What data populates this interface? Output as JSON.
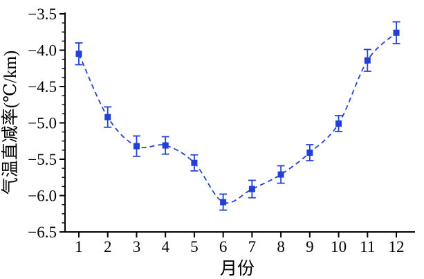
{
  "figure": {
    "background": "#ffffff",
    "accent_color": "#2340d6",
    "axis_color": "#000000"
  },
  "chart_data": {
    "type": "line",
    "title": "",
    "xlabel": "月份",
    "ylabel": "气温直减率(℃/km)",
    "x": [
      1,
      2,
      3,
      4,
      5,
      6,
      7,
      8,
      9,
      10,
      11,
      12
    ],
    "x_tick_labels": [
      "1",
      "2",
      "3",
      "4",
      "5",
      "6",
      "7",
      "8",
      "9",
      "10",
      "11",
      "12"
    ],
    "y_tick_labels": [
      "−3.5",
      "−4.0",
      "−4.5",
      "−5.0",
      "−5.5",
      "−6.0",
      "−6.5"
    ],
    "xlim": [
      0.5,
      12.6
    ],
    "ylim": [
      -6.5,
      -3.5
    ],
    "y_major_step": 0.5,
    "y_minor_step": 0.125,
    "grid": false,
    "legend": "none",
    "series": [
      {
        "name": "monthly-temperature-lapse-rate",
        "color": "#2340d6",
        "marker": "filled-square",
        "line_style": "dashed-spline",
        "values": [
          -4.05,
          -4.92,
          -5.32,
          -5.31,
          -5.55,
          -6.09,
          -5.91,
          -5.71,
          -5.41,
          -5.01,
          -4.14,
          -3.76
        ],
        "error_bars": [
          0.15,
          0.14,
          0.14,
          0.12,
          0.11,
          0.11,
          0.12,
          0.12,
          0.11,
          0.11,
          0.15,
          0.15
        ]
      }
    ]
  }
}
